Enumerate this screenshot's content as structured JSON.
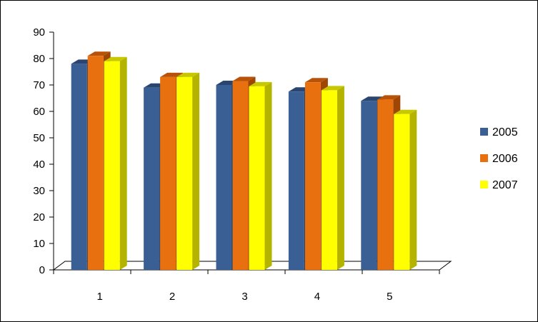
{
  "chart_data": {
    "type": "bar",
    "title": "",
    "xlabel": "",
    "ylabel": "",
    "categories": [
      "1",
      "2",
      "3",
      "4",
      "5"
    ],
    "ylim": [
      0,
      90
    ],
    "yticks": [
      "0",
      "10",
      "20",
      "30",
      "40",
      "50",
      "60",
      "70",
      "80",
      "90"
    ],
    "series": [
      {
        "name": "2005",
        "values": [
          78,
          69,
          70,
          67.5,
          64
        ]
      },
      {
        "name": "2006",
        "values": [
          81,
          73,
          71.5,
          71,
          64.5
        ]
      },
      {
        "name": "2007",
        "values": [
          79,
          73,
          69.5,
          68,
          59
        ]
      }
    ],
    "legend_position": "right",
    "grid": false,
    "style": "3d-clustered-column",
    "colors": {
      "2005": {
        "front": "#3A5F94",
        "top": "#2A4670",
        "side": "#243C60"
      },
      "2006": {
        "front": "#E8700F",
        "top": "#B85208",
        "side": "#A04605"
      },
      "2007": {
        "front": "#FFFF00",
        "top": "#C8C800",
        "side": "#B4B400"
      }
    },
    "border_color": "#000000"
  }
}
